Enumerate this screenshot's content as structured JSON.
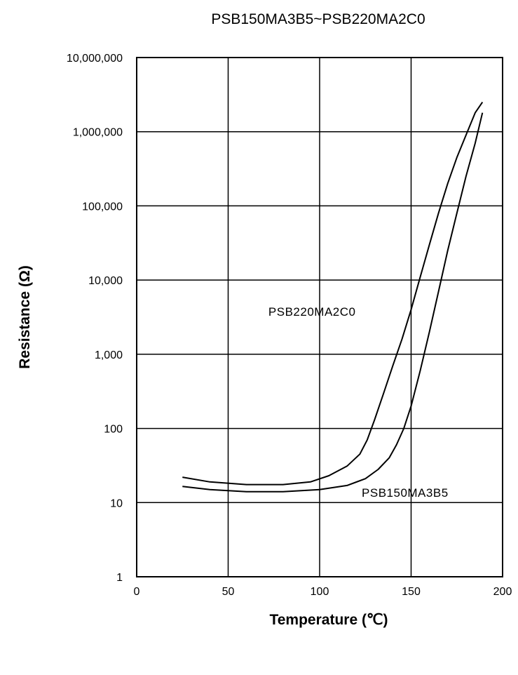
{
  "chart_data": {
    "type": "line",
    "title": "PSB150MA3B5~PSB220MA2C0",
    "xlabel": "Temperature (℃)",
    "ylabel": "Resistance (Ω)",
    "xlim": [
      0,
      200
    ],
    "ylim": [
      1,
      10000000
    ],
    "yscale": "log",
    "grid": true,
    "x_ticks": [
      0,
      50,
      100,
      150,
      200
    ],
    "x_tick_labels": [
      "0",
      "50",
      "100",
      "150",
      "200"
    ],
    "y_ticks": [
      1,
      10,
      100,
      1000,
      10000,
      100000,
      1000000,
      10000000
    ],
    "y_tick_labels": [
      "1",
      "10",
      "100",
      "1,000",
      "10,000",
      "100,000",
      "1,000,000",
      "10,000,000"
    ],
    "series": [
      {
        "name": "PSB220MA2C0",
        "color": "#000000",
        "x": [
          25,
          40,
          60,
          80,
          95,
          105,
          115,
          122,
          126,
          130,
          135,
          140,
          145,
          150,
          155,
          160,
          165,
          170,
          175,
          180,
          185,
          189
        ],
        "y": [
          22,
          19,
          17.5,
          17.5,
          19,
          23,
          31,
          45,
          70,
          130,
          300,
          700,
          1600,
          4000,
          11000,
          30000,
          80000,
          200000,
          450000,
          900000,
          1800000,
          2500000
        ]
      },
      {
        "name": "PSB150MA3B5",
        "color": "#000000",
        "x": [
          25,
          40,
          60,
          80,
          100,
          115,
          125,
          132,
          138,
          142,
          146,
          150,
          155,
          160,
          165,
          170,
          175,
          180,
          185,
          189
        ],
        "y": [
          16.5,
          15,
          14,
          14,
          15,
          17,
          21,
          28,
          40,
          60,
          100,
          200,
          600,
          2000,
          7000,
          25000,
          80000,
          250000,
          700000,
          1800000
        ]
      }
    ]
  }
}
